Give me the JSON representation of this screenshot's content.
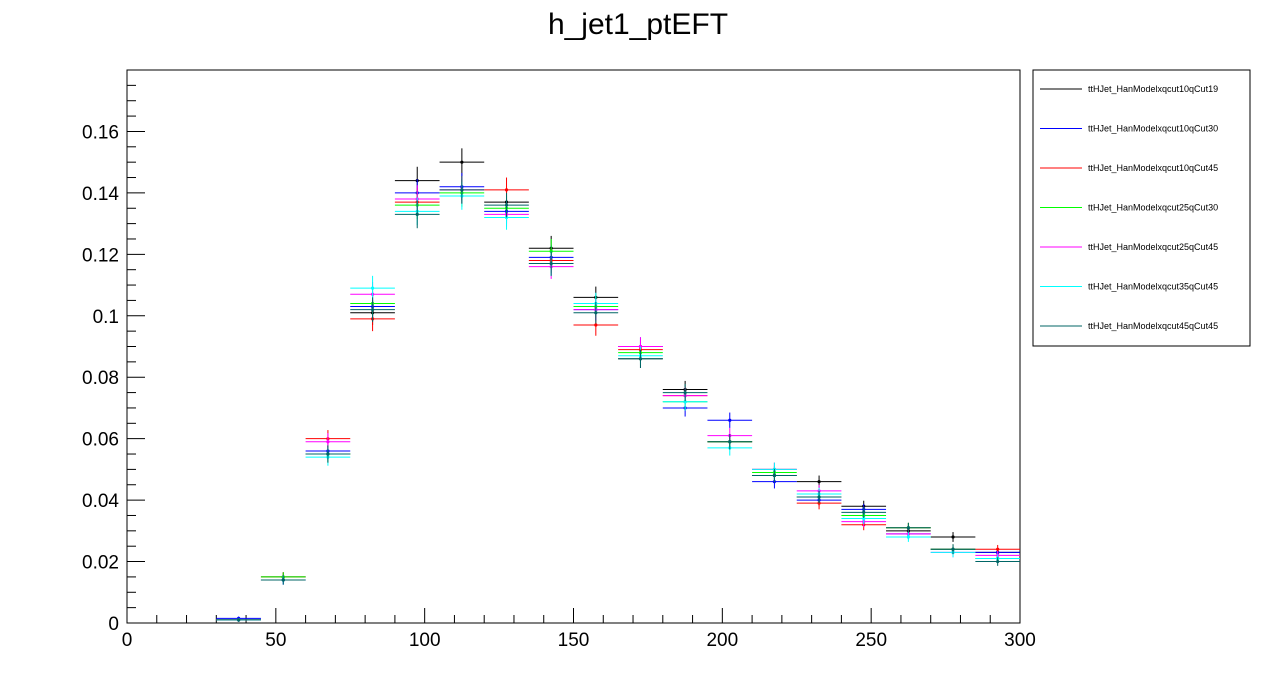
{
  "chart_data": {
    "type": "scatter",
    "style": "error-bar histogram",
    "title": "h_jet1_ptEFT",
    "xlabel": "",
    "ylabel": "",
    "xlim": [
      0,
      300
    ],
    "ylim": [
      0,
      0.18
    ],
    "xticks": [
      0,
      50,
      100,
      150,
      200,
      250,
      300
    ],
    "yticks": [
      0,
      0.02,
      0.04,
      0.06,
      0.08,
      0.1,
      0.12,
      0.14,
      0.16
    ],
    "ytick_labels": [
      "0",
      "0.02",
      "0.04",
      "0.06",
      "0.08",
      "0.1",
      "0.12",
      "0.14",
      "0.16"
    ],
    "grid": false,
    "legend_position": "right",
    "bin_width": 15,
    "x": [
      22.5,
      37.5,
      52.5,
      67.5,
      82.5,
      97.5,
      112.5,
      127.5,
      142.5,
      157.5,
      172.5,
      187.5,
      202.5,
      217.5,
      232.5,
      247.5,
      262.5,
      277.5,
      292.5
    ],
    "series": [
      {
        "name": "ttHJet_HanModelxqcut10qCut19",
        "color": "#000000",
        "values": [
          0,
          0.001,
          0.015,
          0.055,
          0.101,
          0.144,
          0.15,
          0.137,
          0.122,
          0.106,
          0.086,
          0.076,
          0.059,
          0.048,
          0.046,
          0.038,
          0.03,
          0.028,
          0.023
        ],
        "errors": [
          0,
          0.0006,
          0.0015,
          0.0028,
          0.004,
          0.0045,
          0.0045,
          0.004,
          0.004,
          0.0035,
          0.003,
          0.0028,
          0.0025,
          0.0022,
          0.002,
          0.0018,
          0.0016,
          0.0016,
          0.0014
        ]
      },
      {
        "name": "ttHJet_HanModelxqcut10qCut30",
        "color": "#0000ff",
        "values": [
          0,
          0.0015,
          0.014,
          0.056,
          0.103,
          0.14,
          0.142,
          0.134,
          0.119,
          0.102,
          0.09,
          0.07,
          0.066,
          0.046,
          0.04,
          0.037,
          0.029,
          0.024,
          0.023
        ],
        "errors": [
          0,
          0.0006,
          0.0015,
          0.0028,
          0.004,
          0.0045,
          0.0045,
          0.004,
          0.004,
          0.0035,
          0.003,
          0.0028,
          0.0025,
          0.0022,
          0.002,
          0.0018,
          0.0016,
          0.0016,
          0.0014
        ]
      },
      {
        "name": "ttHJet_HanModelxqcut10qCut45",
        "color": "#ff0000",
        "values": [
          0,
          0.001,
          0.015,
          0.06,
          0.099,
          0.137,
          0.141,
          0.141,
          0.118,
          0.097,
          0.089,
          0.074,
          0.059,
          0.05,
          0.039,
          0.032,
          0.031,
          0.024,
          0.024
        ],
        "errors": [
          0,
          0.0006,
          0.0015,
          0.0028,
          0.004,
          0.0045,
          0.0045,
          0.004,
          0.004,
          0.0035,
          0.003,
          0.0028,
          0.0025,
          0.0022,
          0.002,
          0.0018,
          0.0016,
          0.0016,
          0.0014
        ]
      },
      {
        "name": "ttHJet_HanModelxqcut25qCut30",
        "color": "#00ff00",
        "values": [
          0,
          0.001,
          0.015,
          0.055,
          0.104,
          0.136,
          0.14,
          0.135,
          0.121,
          0.103,
          0.088,
          0.072,
          0.059,
          0.049,
          0.041,
          0.035,
          0.031,
          0.024,
          0.021
        ],
        "errors": [
          0,
          0.0006,
          0.0015,
          0.0028,
          0.004,
          0.0045,
          0.0045,
          0.004,
          0.004,
          0.0035,
          0.003,
          0.0028,
          0.0025,
          0.0022,
          0.002,
          0.0018,
          0.0016,
          0.0016,
          0.0014
        ]
      },
      {
        "name": "ttHJet_HanModelxqcut25qCut45",
        "color": "#ff00ff",
        "values": [
          0,
          0.001,
          0.014,
          0.059,
          0.107,
          0.138,
          0.141,
          0.133,
          0.116,
          0.102,
          0.09,
          0.074,
          0.061,
          0.05,
          0.043,
          0.033,
          0.029,
          0.023,
          0.022
        ],
        "errors": [
          0,
          0.0006,
          0.0015,
          0.0028,
          0.004,
          0.0045,
          0.0045,
          0.004,
          0.004,
          0.0035,
          0.003,
          0.0028,
          0.0025,
          0.0022,
          0.002,
          0.0018,
          0.0016,
          0.0016,
          0.0014
        ]
      },
      {
        "name": "ttHJet_HanModelxqcut35qCut45",
        "color": "#00ffff",
        "values": [
          0,
          0.001,
          0.014,
          0.054,
          0.109,
          0.134,
          0.139,
          0.132,
          0.117,
          0.104,
          0.087,
          0.072,
          0.057,
          0.05,
          0.042,
          0.034,
          0.028,
          0.023,
          0.021
        ],
        "errors": [
          0,
          0.0006,
          0.0015,
          0.0028,
          0.004,
          0.0045,
          0.0045,
          0.004,
          0.004,
          0.0035,
          0.003,
          0.0028,
          0.0025,
          0.0022,
          0.002,
          0.0018,
          0.0016,
          0.0016,
          0.0014
        ]
      },
      {
        "name": "ttHJet_HanModelxqcut45qCut45",
        "color": "#006666",
        "values": [
          0,
          0.001,
          0.014,
          0.055,
          0.102,
          0.133,
          0.141,
          0.136,
          0.117,
          0.101,
          0.086,
          0.075,
          0.059,
          0.048,
          0.041,
          0.036,
          0.031,
          0.024,
          0.02
        ],
        "errors": [
          0,
          0.0006,
          0.0015,
          0.0028,
          0.004,
          0.0045,
          0.0045,
          0.004,
          0.004,
          0.0035,
          0.003,
          0.0028,
          0.0025,
          0.0022,
          0.002,
          0.0018,
          0.0016,
          0.0016,
          0.0014
        ]
      }
    ]
  }
}
